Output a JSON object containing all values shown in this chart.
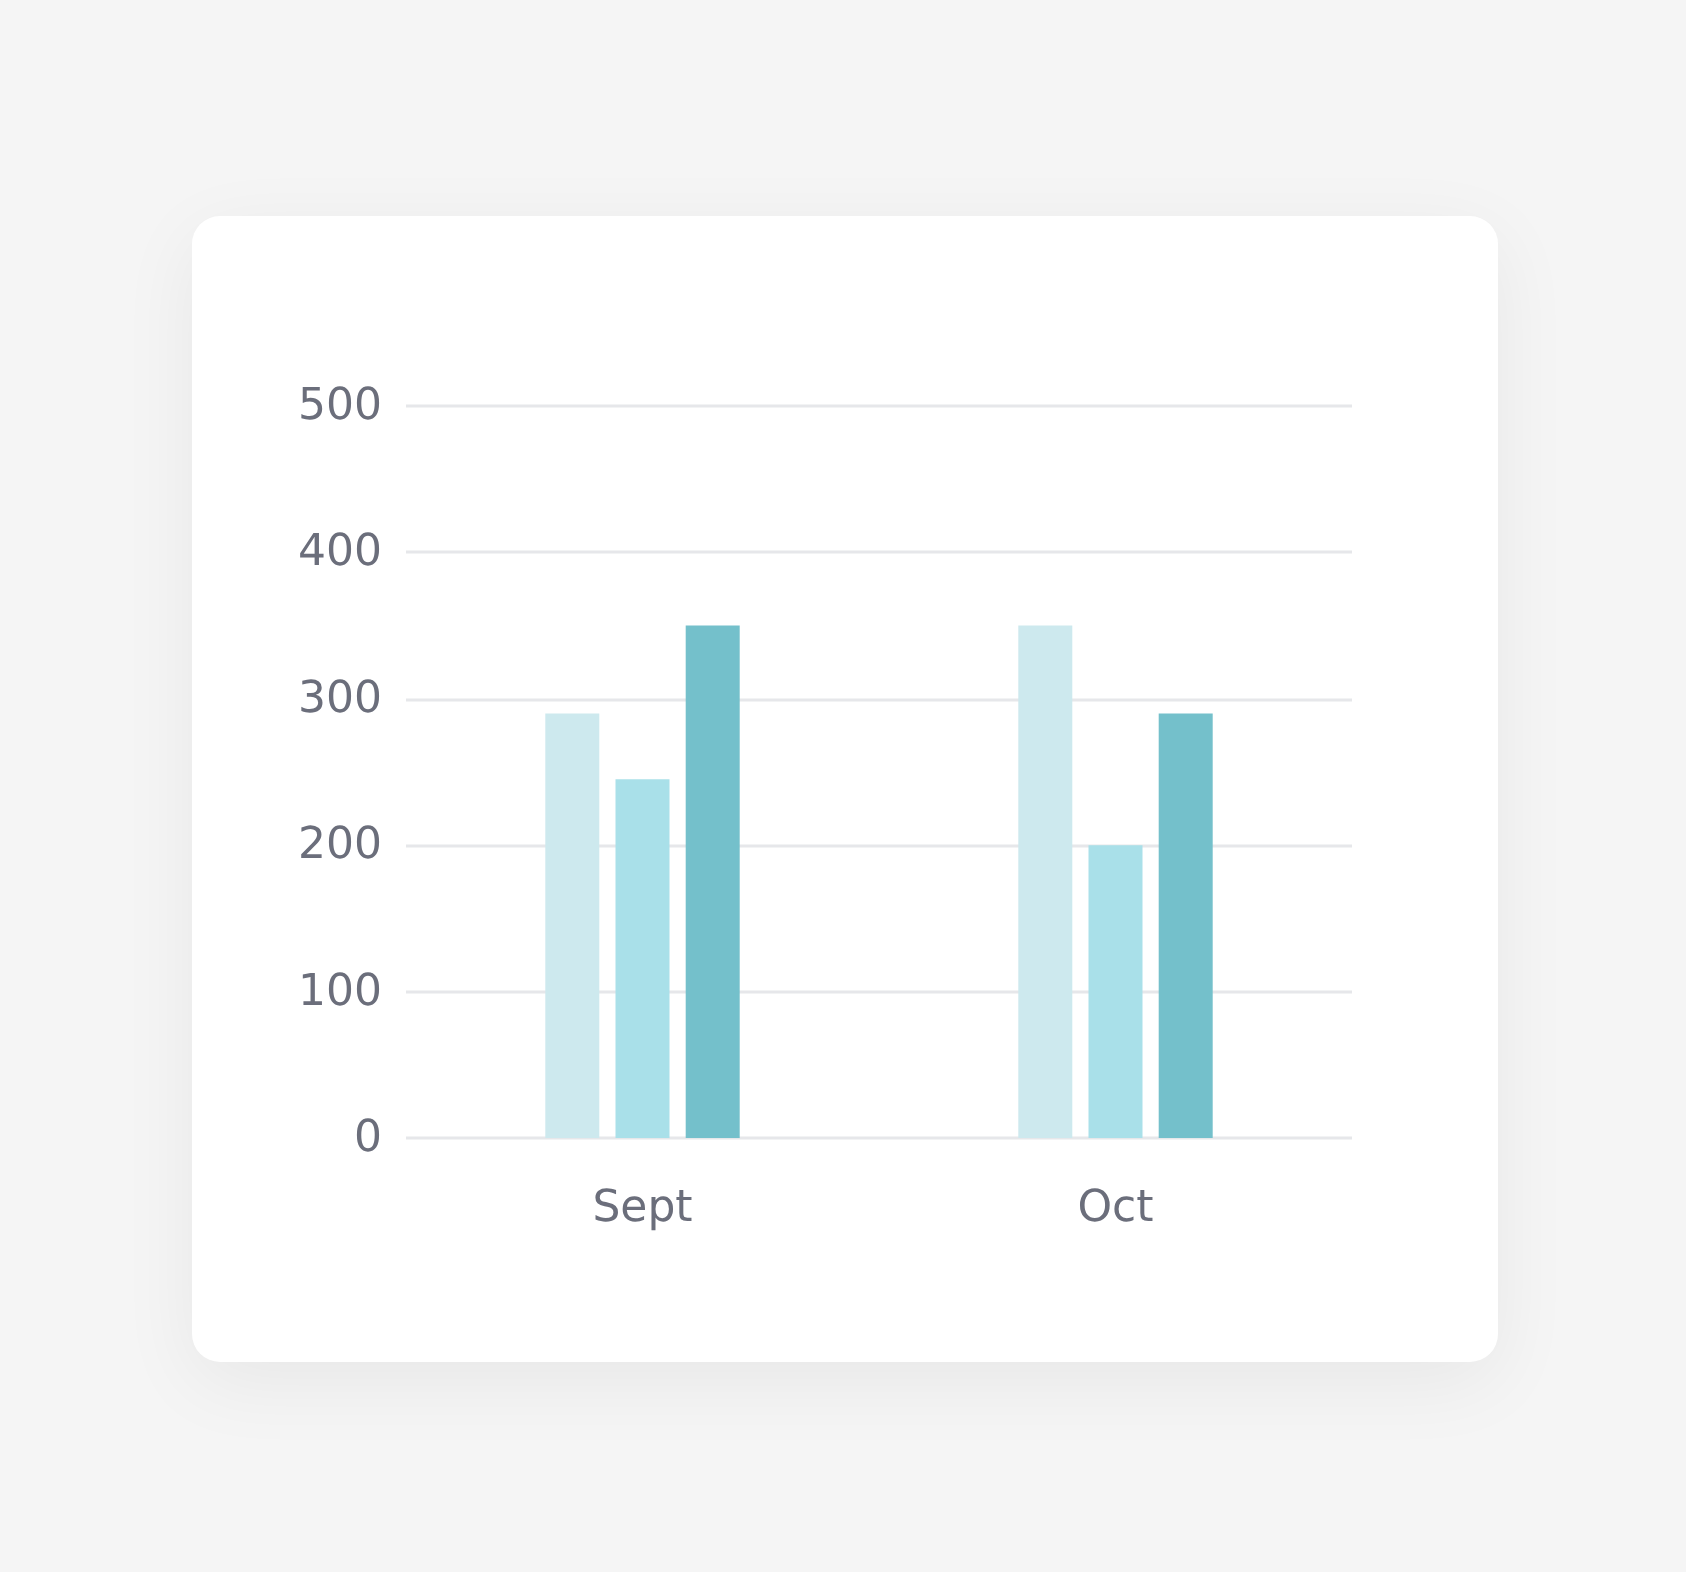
{
  "chart_data": {
    "type": "bar",
    "categories": [
      "Sept",
      "Oct"
    ],
    "series": [
      {
        "color": "#cde9ee",
        "values": [
          290,
          350
        ]
      },
      {
        "color": "#a9e0e9",
        "values": [
          245,
          200
        ]
      },
      {
        "color": "#74c0cb",
        "values": [
          350,
          290
        ]
      }
    ],
    "ylim": [
      0,
      500
    ],
    "yticks": [
      0,
      100,
      200,
      300,
      400,
      500
    ],
    "grid": "y"
  }
}
